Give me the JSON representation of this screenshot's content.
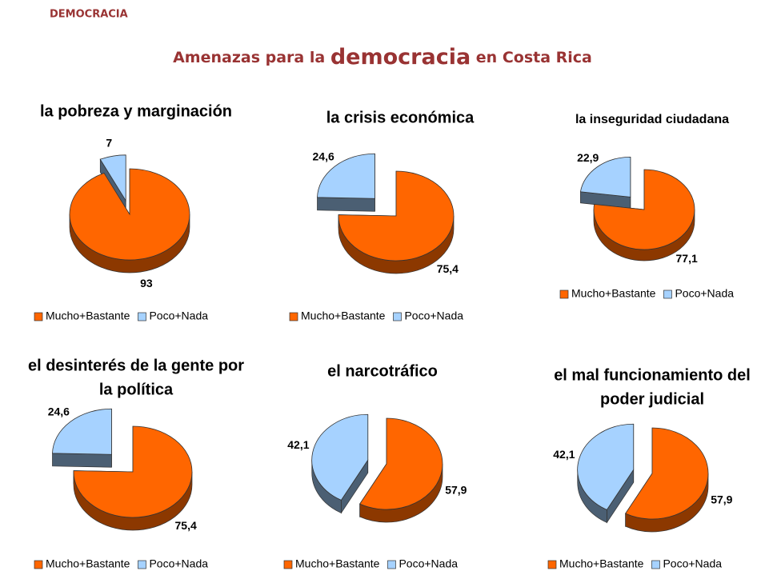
{
  "section": "DEMOCRACIA",
  "title_parts": [
    "Amenazas para la",
    "democracia",
    "en Costa Rica"
  ],
  "chart_data": [
    {
      "type": "pie",
      "title": [
        "la pobreza y marginación"
      ],
      "categories": [
        "Mucho+Bastante",
        "Poco+Nada"
      ],
      "values": [
        93,
        7
      ],
      "colors": [
        "#ff6600",
        "#a6d2ff"
      ]
    },
    {
      "type": "pie",
      "title": [
        "la crisis económica"
      ],
      "categories": [
        "Mucho+Bastante",
        "Poco+Nada"
      ],
      "values": [
        75.4,
        24.6
      ],
      "value_labels": [
        "75,4",
        "24,6"
      ],
      "colors": [
        "#ff6600",
        "#a6d2ff"
      ]
    },
    {
      "type": "pie",
      "title": [
        "la inseguridad ciudadana"
      ],
      "categories": [
        "Mucho+Bastante",
        "Poco+Nada"
      ],
      "values": [
        77.1,
        22.9
      ],
      "value_labels": [
        "77,1",
        "22,9"
      ],
      "colors": [
        "#ff6600",
        "#a6d2ff"
      ]
    },
    {
      "type": "pie",
      "title": [
        "el desinterés de la gente por",
        "la política"
      ],
      "categories": [
        "Mucho+Bastante",
        "Poco+Nada"
      ],
      "values": [
        75.4,
        24.6
      ],
      "value_labels": [
        "75,4",
        "24,6"
      ],
      "colors": [
        "#ff6600",
        "#a6d2ff"
      ]
    },
    {
      "type": "pie",
      "title": [
        "el narcotráfico"
      ],
      "categories": [
        "Mucho+Bastante",
        "Poco+Nada"
      ],
      "values": [
        57.9,
        42.1
      ],
      "value_labels": [
        "57,9",
        "42,1"
      ],
      "colors": [
        "#ff6600",
        "#a6d2ff"
      ]
    },
    {
      "type": "pie",
      "title": [
        "el mal funcionamiento del",
        "poder judicial"
      ],
      "categories": [
        "Mucho+Bastante",
        "Poco+Nada"
      ],
      "values": [
        57.9,
        42.1
      ],
      "value_labels": [
        "57,9",
        "42,1"
      ],
      "colors": [
        "#ff6600",
        "#a6d2ff"
      ]
    }
  ]
}
